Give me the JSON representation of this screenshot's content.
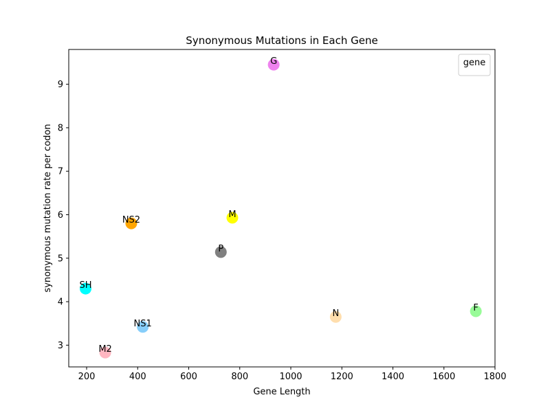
{
  "chart_data": {
    "type": "scatter",
    "title": "Synonymous Mutations in Each Gene",
    "xlabel": "Gene Length",
    "ylabel": "synonymous mutation rate per codon",
    "xlim": [
      130,
      1800
    ],
    "ylim": [
      2.5,
      9.8
    ],
    "xticks": [
      200,
      400,
      600,
      800,
      1000,
      1200,
      1400,
      1600,
      1800
    ],
    "yticks": [
      3,
      4,
      5,
      6,
      7,
      8,
      9
    ],
    "grid": false,
    "legend": {
      "title": "gene",
      "placement": "top-right",
      "entries": []
    },
    "points": [
      {
        "label": "SH",
        "x": 196,
        "y": 4.3,
        "color": "#00ffff"
      },
      {
        "label": "M2",
        "x": 273,
        "y": 2.83,
        "color": "#ffb6c1"
      },
      {
        "label": "NS2",
        "x": 375,
        "y": 5.8,
        "color": "#ffa500"
      },
      {
        "label": "NS1",
        "x": 420,
        "y": 3.42,
        "color": "#87cefa"
      },
      {
        "label": "P",
        "x": 726,
        "y": 5.14,
        "color": "#808080"
      },
      {
        "label": "M",
        "x": 771,
        "y": 5.93,
        "color": "#ffff00"
      },
      {
        "label": "G",
        "x": 933,
        "y": 9.45,
        "color": "#ee82ee"
      },
      {
        "label": "N",
        "x": 1176,
        "y": 3.65,
        "color": "#ffdead"
      },
      {
        "label": "F",
        "x": 1725,
        "y": 3.78,
        "color": "#98fb98"
      }
    ]
  }
}
